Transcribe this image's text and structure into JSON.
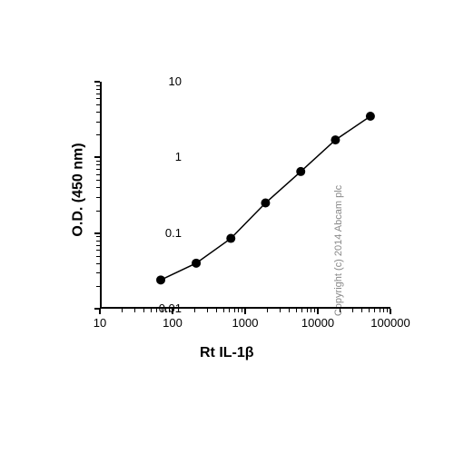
{
  "chart": {
    "type": "line",
    "y_label": "O.D. (450 nm)",
    "x_label_prefix": "Rt IL-1",
    "x_label_suffix": "β",
    "copyright": "Copyright (c) 2014 Abcam plc",
    "x_scale": "log",
    "y_scale": "log",
    "xlim": [
      10,
      100000
    ],
    "ylim": [
      0.01,
      10
    ],
    "x_ticks": [
      10,
      100,
      1000,
      10000,
      100000
    ],
    "x_tick_labels": [
      "10",
      "100",
      "1000",
      "10000",
      "100000"
    ],
    "y_ticks": [
      0.01,
      0.1,
      1,
      10
    ],
    "y_tick_labels": [
      "0.01",
      "0.1",
      "1",
      "10"
    ],
    "data_x": [
      65,
      200,
      600,
      1800,
      5500,
      16500,
      50000
    ],
    "data_y": [
      0.024,
      0.04,
      0.085,
      0.25,
      0.65,
      1.7,
      3.5
    ],
    "line_color": "#000000",
    "marker_color": "#000000",
    "marker_size": 5,
    "line_width": 1.5,
    "background_color": "#ffffff",
    "axis_color": "#000000",
    "label_fontsize": 16,
    "tick_fontsize": 13,
    "copyright_color": "#888888"
  }
}
